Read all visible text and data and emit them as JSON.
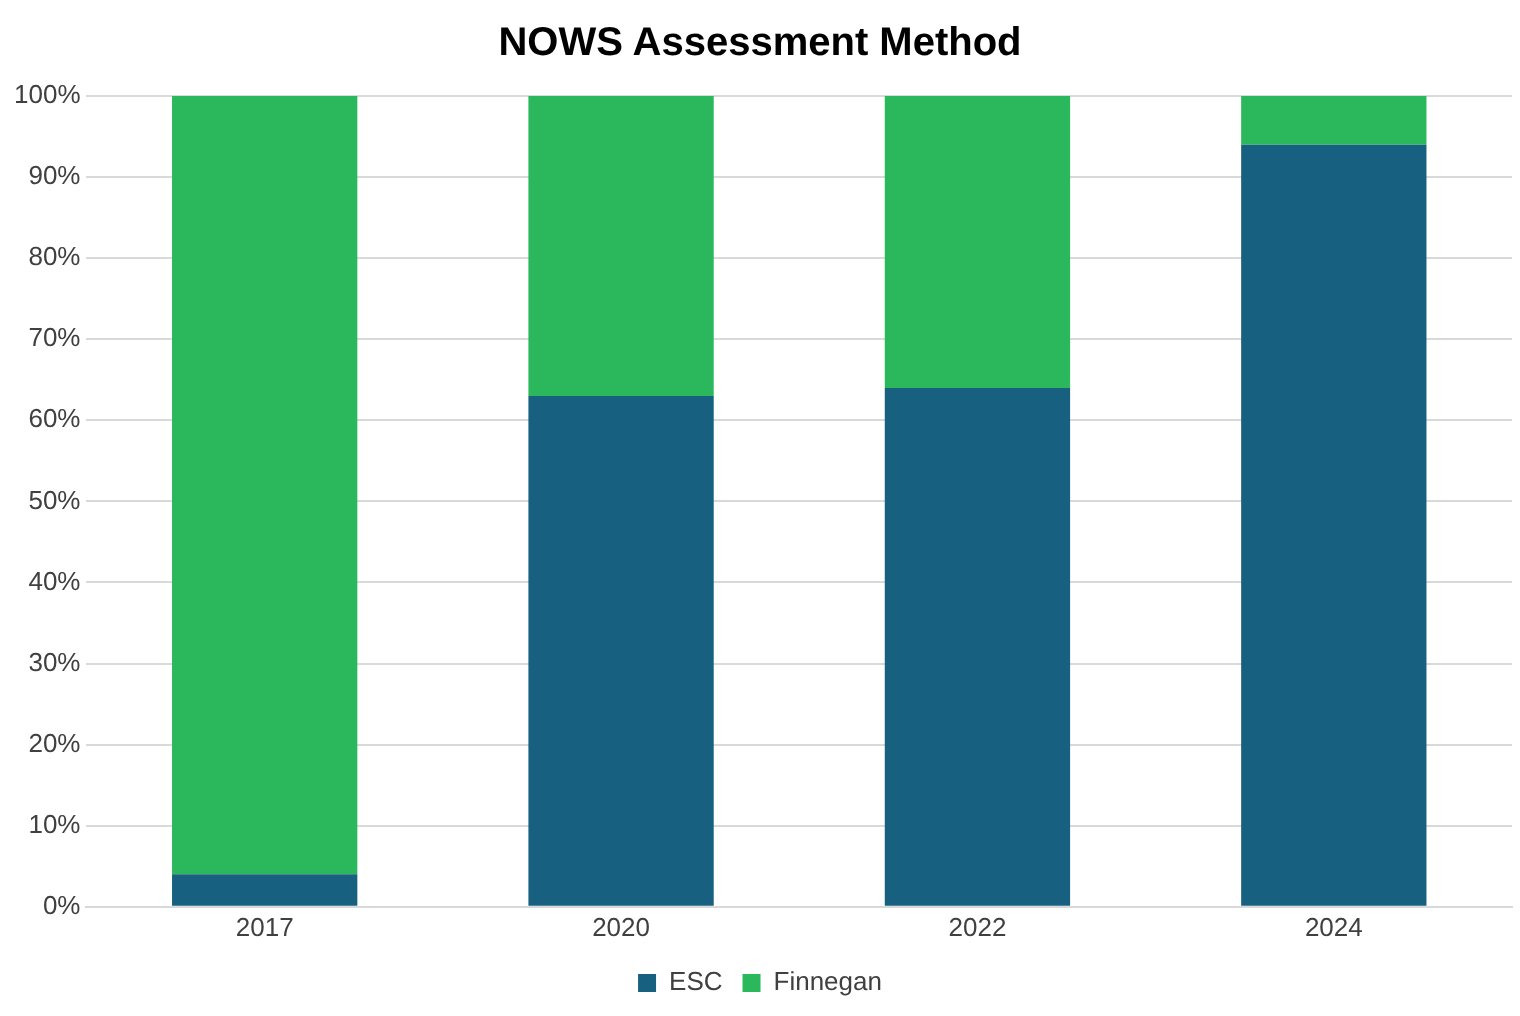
{
  "chart_data": {
    "type": "bar",
    "title": "NOWS Assessment Method",
    "categories": [
      "2017",
      "2020",
      "2022",
      "2024"
    ],
    "stacked": true,
    "series": [
      {
        "name": "ESC",
        "color": "#17607f",
        "values": [
          4,
          63,
          64,
          94
        ]
      },
      {
        "name": "Finnegan",
        "color": "#2bb85c",
        "values": [
          96,
          37,
          36,
          6
        ]
      }
    ],
    "ylim": [
      0,
      100
    ],
    "yticks": [
      {
        "value": 0,
        "label": "0%"
      },
      {
        "value": 10,
        "label": "10%"
      },
      {
        "value": 20,
        "label": "20%"
      },
      {
        "value": 30,
        "label": "30%"
      },
      {
        "value": 40,
        "label": "40%"
      },
      {
        "value": 50,
        "label": "50%"
      },
      {
        "value": 60,
        "label": "60%"
      },
      {
        "value": 70,
        "label": "70%"
      },
      {
        "value": 80,
        "label": "80%"
      },
      {
        "value": 90,
        "label": "90%"
      },
      {
        "value": 100,
        "label": "100%"
      }
    ],
    "grid": "y",
    "legend": "bottom"
  }
}
